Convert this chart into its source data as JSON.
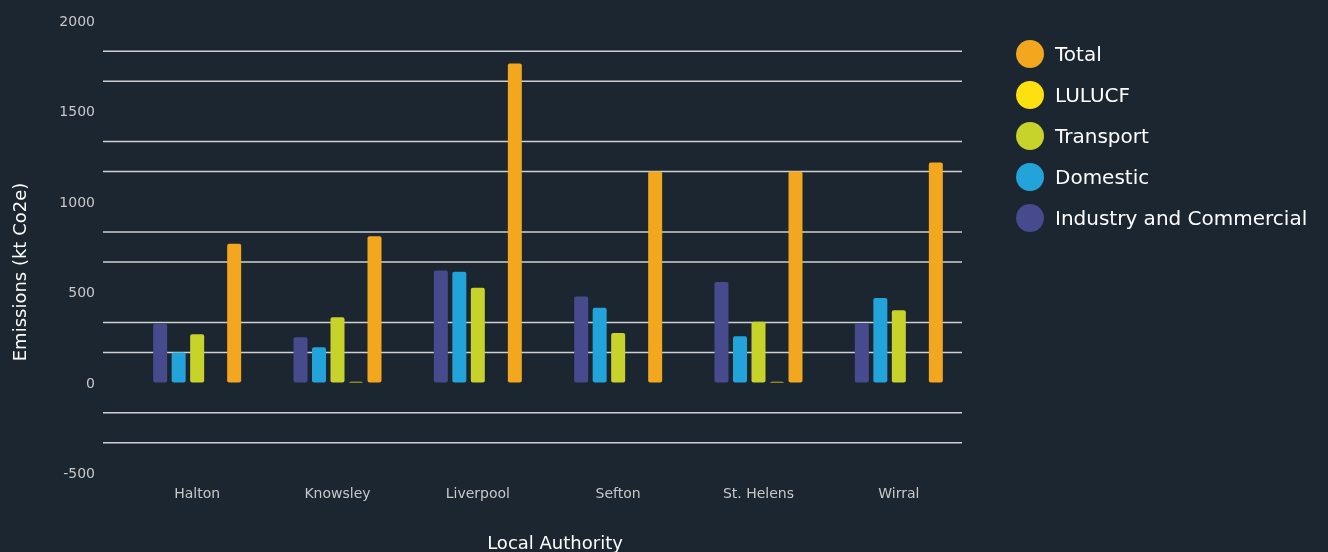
{
  "chart_data": {
    "type": "bar",
    "xlabel": "Local Authority",
    "ylabel": "Emissions (kt Co2e)",
    "categories": [
      "Halton",
      "Knowsley",
      "Liverpool",
      "Sefton",
      "St. Helens",
      "Wirral"
    ],
    "series": [
      {
        "name": "Industry and Commercial",
        "color": "#474a8c",
        "values": [
          326,
          251,
          620,
          476,
          556,
          330
        ]
      },
      {
        "name": "Domestic",
        "color": "#22a3d9",
        "values": [
          166,
          196,
          613,
          414,
          256,
          468
        ]
      },
      {
        "name": "Transport",
        "color": "#c7d22a",
        "values": [
          267,
          362,
          525,
          274,
          336,
          400
        ]
      },
      {
        "name": "LULUCF",
        "color": "#fde010",
        "values": [
          0,
          5,
          0,
          0,
          5,
          0
        ]
      },
      {
        "name": "Total",
        "color": "#f2a71f",
        "values": [
          768,
          810,
          1765,
          1167,
          1167,
          1217
        ]
      }
    ],
    "ylim": [
      -500,
      2000
    ],
    "yticks": [
      -500,
      {
        "value": -333,
        "label": null
      },
      {
        "value": -167,
        "label": null
      },
      0,
      {
        "value": 167,
        "label": null
      },
      {
        "value": 333,
        "label": null
      },
      500,
      {
        "value": 667,
        "label": null
      },
      {
        "value": 833,
        "label": null
      },
      1000,
      {
        "value": 1167,
        "label": null
      },
      {
        "value": 1333,
        "label": null
      },
      1500,
      {
        "value": 1667,
        "label": null
      },
      {
        "value": 1833,
        "label": null
      },
      2000
    ],
    "grid": "y",
    "legend": "right"
  }
}
